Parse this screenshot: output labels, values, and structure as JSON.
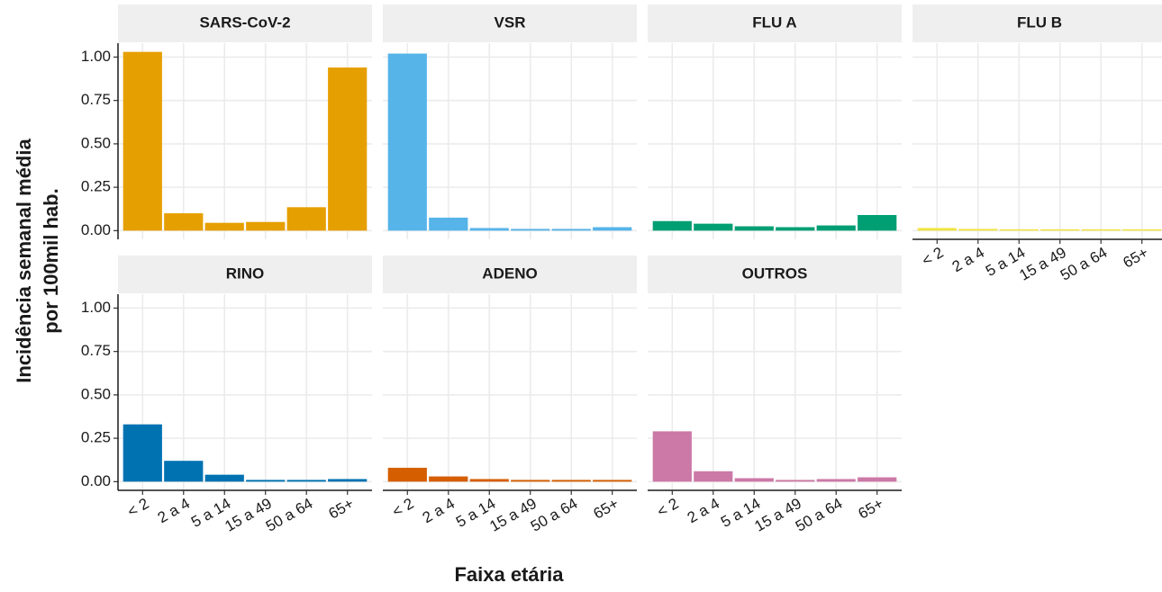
{
  "x_label": "Faixa etária",
  "y_label": [
    "Incidência  semanal média",
    "por 100mil hab."
  ],
  "chart_data": [
    {
      "type": "bar",
      "title": "SARS-CoV-2",
      "categories": [
        "< 2",
        "2 a 4",
        "5 a 14",
        "15 a 49",
        "50 a 64",
        "65+"
      ],
      "values": [
        1.03,
        0.1,
        0.045,
        0.05,
        0.135,
        0.94
      ],
      "color": "#E69F00",
      "ylim": [
        -0.05,
        1.08
      ],
      "yticks": [
        {
          "value": 0,
          "label": "0.00"
        },
        {
          "value": 0.25,
          "label": "0.25"
        },
        {
          "value": 0.5,
          "label": "0.50"
        },
        {
          "value": 0.75,
          "label": "0.75"
        },
        {
          "value": 1,
          "label": "1.00"
        }
      ],
      "grid": true
    },
    {
      "type": "bar",
      "title": "VSR",
      "categories": [
        "< 2",
        "2 a 4",
        "5 a 14",
        "15 a 49",
        "50 a 64",
        "65+"
      ],
      "values": [
        1.02,
        0.075,
        0.015,
        0.01,
        0.01,
        0.02
      ],
      "color": "#56B4E9",
      "ylim": [
        -0.05,
        1.08
      ],
      "yticks": [
        {
          "value": 0,
          "label": "0.00"
        },
        {
          "value": 0.25,
          "label": "0.25"
        },
        {
          "value": 0.5,
          "label": "0.50"
        },
        {
          "value": 0.75,
          "label": "0.75"
        },
        {
          "value": 1,
          "label": "1.00"
        }
      ],
      "grid": true
    },
    {
      "type": "bar",
      "title": "FLU A",
      "categories": [
        "< 2",
        "2 a 4",
        "5 a 14",
        "15 a 49",
        "50 a 64",
        "65+"
      ],
      "values": [
        0.055,
        0.04,
        0.025,
        0.02,
        0.03,
        0.09
      ],
      "color": "#009E73",
      "ylim": [
        -0.05,
        1.08
      ],
      "yticks": [
        {
          "value": 0,
          "label": "0.00"
        },
        {
          "value": 0.25,
          "label": "0.25"
        },
        {
          "value": 0.5,
          "label": "0.50"
        },
        {
          "value": 0.75,
          "label": "0.75"
        },
        {
          "value": 1,
          "label": "1.00"
        }
      ],
      "grid": true
    },
    {
      "type": "bar",
      "title": "FLU B",
      "categories": [
        "< 2",
        "2 a 4",
        "5 a 14",
        "15 a 49",
        "50 a 64",
        "65+"
      ],
      "values": [
        0.015,
        0.01,
        0.008,
        0.008,
        0.008,
        0.008
      ],
      "color": "#F0E442",
      "ylim": [
        -0.05,
        1.08
      ],
      "yticks": [
        {
          "value": 0,
          "label": "0.00"
        },
        {
          "value": 0.25,
          "label": "0.25"
        },
        {
          "value": 0.5,
          "label": "0.50"
        },
        {
          "value": 0.75,
          "label": "0.75"
        },
        {
          "value": 1,
          "label": "1.00"
        }
      ],
      "grid": true
    },
    {
      "type": "bar",
      "title": "RINO",
      "categories": [
        "< 2",
        "2 a 4",
        "5 a 14",
        "15 a 49",
        "50 a 64",
        "65+"
      ],
      "values": [
        0.33,
        0.12,
        0.04,
        0.01,
        0.01,
        0.015
      ],
      "color": "#0072B2",
      "ylim": [
        -0.05,
        1.08
      ],
      "yticks": [
        {
          "value": 0,
          "label": "0.00"
        },
        {
          "value": 0.25,
          "label": "0.25"
        },
        {
          "value": 0.5,
          "label": "0.50"
        },
        {
          "value": 0.75,
          "label": "0.75"
        },
        {
          "value": 1,
          "label": "1.00"
        }
      ],
      "grid": true
    },
    {
      "type": "bar",
      "title": "ADENO",
      "categories": [
        "< 2",
        "2 a 4",
        "5 a 14",
        "15 a 49",
        "50 a 64",
        "65+"
      ],
      "values": [
        0.08,
        0.03,
        0.015,
        0.01,
        0.01,
        0.01
      ],
      "color": "#D55E00",
      "ylim": [
        -0.05,
        1.08
      ],
      "yticks": [
        {
          "value": 0,
          "label": "0.00"
        },
        {
          "value": 0.25,
          "label": "0.25"
        },
        {
          "value": 0.5,
          "label": "0.50"
        },
        {
          "value": 0.75,
          "label": "0.75"
        },
        {
          "value": 1,
          "label": "1.00"
        }
      ],
      "grid": true
    },
    {
      "type": "bar",
      "title": "OUTROS",
      "categories": [
        "< 2",
        "2 a 4",
        "5 a 14",
        "15 a 49",
        "50 a 64",
        "65+"
      ],
      "values": [
        0.29,
        0.06,
        0.02,
        0.01,
        0.015,
        0.025
      ],
      "color": "#CC79A7",
      "ylim": [
        -0.05,
        1.08
      ],
      "yticks": [
        {
          "value": 0,
          "label": "0.00"
        },
        {
          "value": 0.25,
          "label": "0.25"
        },
        {
          "value": 0.5,
          "label": "0.50"
        },
        {
          "value": 0.75,
          "label": "0.75"
        },
        {
          "value": 1,
          "label": "1.00"
        }
      ],
      "grid": true
    }
  ]
}
